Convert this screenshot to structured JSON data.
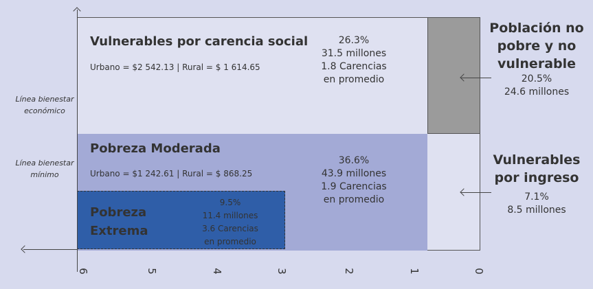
{
  "chart_data": {
    "type": "diagram",
    "x_ticks": [
      "6",
      "5",
      "4",
      "3",
      "2",
      "1",
      "0"
    ],
    "y_labels": {
      "upper": "Línea bienestar económico",
      "lower": "Línea bienestar mínimo"
    },
    "regions": [
      {
        "name": "Vulnerables por carencia social",
        "lines": "Urbano = $2 542.13 | Rural = $ 1 614.65",
        "percent": "26.3%",
        "people": "31.5 millones",
        "deprivations": "1.8 Carencias",
        "suffix": "en promedio"
      },
      {
        "name": "Pobreza Moderada",
        "lines": "Urbano = $1 242.61 | Rural = $ 868.25",
        "percent": "36.6%",
        "people": "43.9 millones",
        "deprivations": "1.9 Carencias",
        "suffix": "en promedio"
      },
      {
        "name1": "Pobreza",
        "name2": "Extrema",
        "percent": "9.5%",
        "people": "11.4 millones",
        "deprivations": "3.6 Carencias",
        "suffix": "en promedio"
      },
      {
        "name1": "Población no",
        "name2": "pobre y no",
        "name3": "vulnerable",
        "percent": "20.5%",
        "people": "24.6 millones"
      },
      {
        "name1": "Vulnerables",
        "name2": "por ingreso",
        "percent": "7.1%",
        "people": "8.5 millones"
      }
    ],
    "colors": {
      "background": "#d7daee",
      "moderate": "#a3aad6",
      "extreme": "#2f5ea8",
      "nonpoor": "#9b9b9b"
    }
  }
}
